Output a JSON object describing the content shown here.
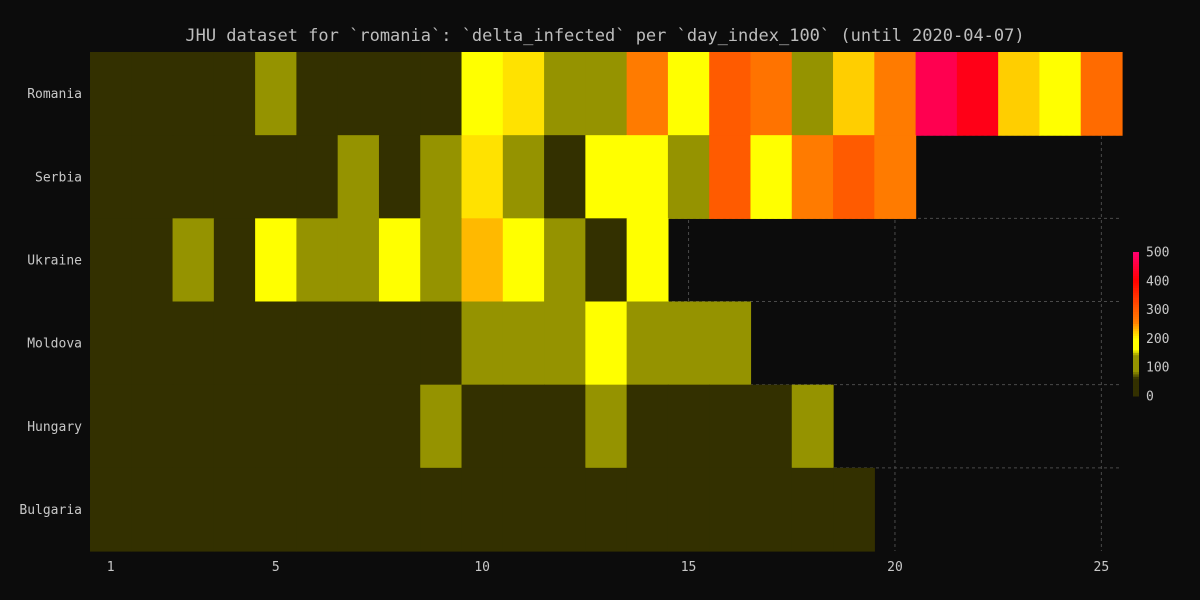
{
  "chart_data": {
    "type": "heatmap",
    "title": "JHU dataset for `romania`: `delta_infected` per `day_index_100` (until 2020-04-07)",
    "xlabel": "",
    "ylabel": "",
    "x": [
      1,
      2,
      3,
      4,
      5,
      6,
      7,
      8,
      9,
      10,
      11,
      12,
      13,
      14,
      15,
      16,
      17,
      18,
      19,
      20,
      21,
      22,
      23,
      24,
      25
    ],
    "x_ticks": [
      1,
      5,
      10,
      15,
      20,
      25
    ],
    "categories": [
      "Romania",
      "Serbia",
      "Ukraine",
      "Moldova",
      "Hungary",
      "Bulgaria"
    ],
    "values": [
      [
        5,
        6,
        7,
        5,
        100,
        15,
        20,
        25,
        10,
        170,
        210,
        100,
        100,
        260,
        180,
        300,
        270,
        110,
        220,
        260,
        470,
        420,
        220,
        180,
        280
      ],
      [
        3,
        4,
        5,
        6,
        8,
        20,
        100,
        20,
        100,
        210,
        100,
        20,
        180,
        180,
        100,
        300,
        180,
        260,
        300,
        260
      ],
      [
        5,
        6,
        100,
        10,
        170,
        100,
        100,
        170,
        100,
        230,
        170,
        100,
        30,
        170
      ],
      [
        1,
        2,
        1,
        3,
        2,
        3,
        5,
        2,
        6,
        100,
        100,
        100,
        170,
        100,
        100,
        100
      ],
      [
        1,
        2,
        1,
        2,
        3,
        2,
        4,
        5,
        100,
        10,
        15,
        15,
        100,
        20,
        20,
        20,
        20,
        100
      ],
      [
        1,
        2,
        1,
        2,
        3,
        2,
        3,
        4,
        8,
        5,
        5,
        5,
        5,
        5,
        5,
        5,
        5,
        5,
        5
      ]
    ],
    "zlim": [
      0,
      500
    ],
    "colorbar_ticks": [
      0,
      100,
      200,
      300,
      400,
      500
    ],
    "colorscale": [
      [
        0,
        "#333000"
      ],
      [
        60,
        "#333000"
      ],
      [
        85,
        "#959300"
      ],
      [
        140,
        "#959300"
      ],
      [
        160,
        "#ffff00"
      ],
      [
        195,
        "#ffff00"
      ],
      [
        225,
        "#ffc400"
      ],
      [
        255,
        "#ff7f00"
      ],
      [
        300,
        "#ff5b00"
      ],
      [
        400,
        "#ff0000"
      ],
      [
        500,
        "#ff0072"
      ]
    ],
    "background_color": "#0c0c0c",
    "gridline_color": "#4a4a4a",
    "grid": true,
    "legend": "colorbar-right"
  }
}
